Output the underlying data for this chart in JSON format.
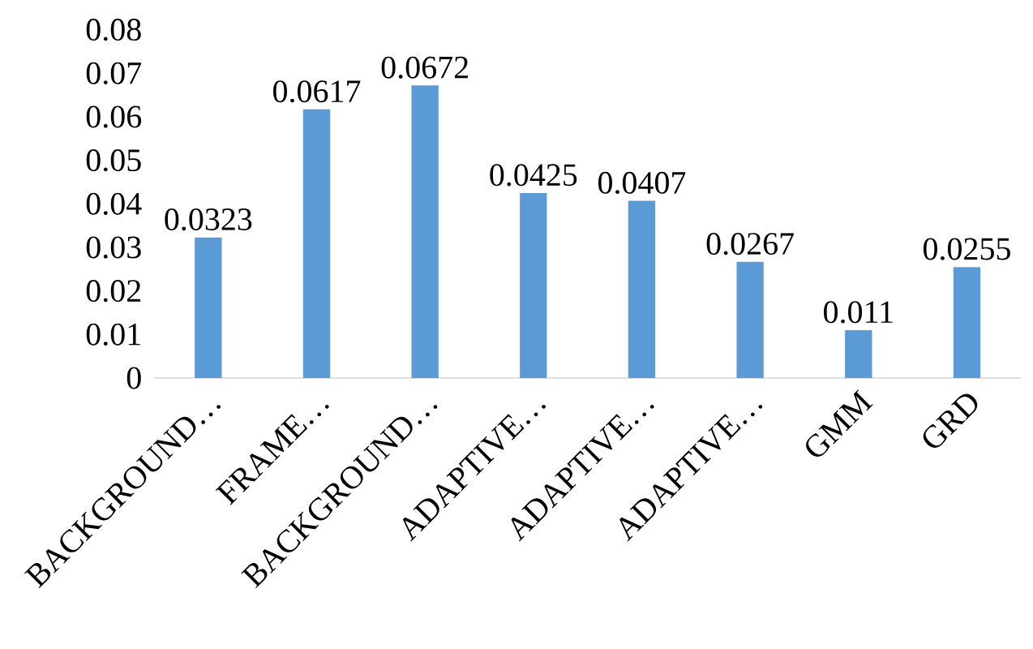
{
  "chart_data": {
    "type": "bar",
    "categories": [
      "BACKGROUND…",
      "FRAME…",
      "BACKGROUND…",
      "ADAPTIVE…",
      "ADAPTIVE…",
      "ADAPTIVE…",
      "GMM",
      "GRD"
    ],
    "values": [
      0.0323,
      0.0617,
      0.0672,
      0.0425,
      0.0407,
      0.0267,
      0.011,
      0.0255
    ],
    "color": "#5b9bd5",
    "ylim": [
      0,
      0.08
    ],
    "yticks": [
      0,
      0.01,
      0.02,
      0.03,
      0.04,
      0.05,
      0.06,
      0.07,
      0.08
    ],
    "data_labels": true
  }
}
